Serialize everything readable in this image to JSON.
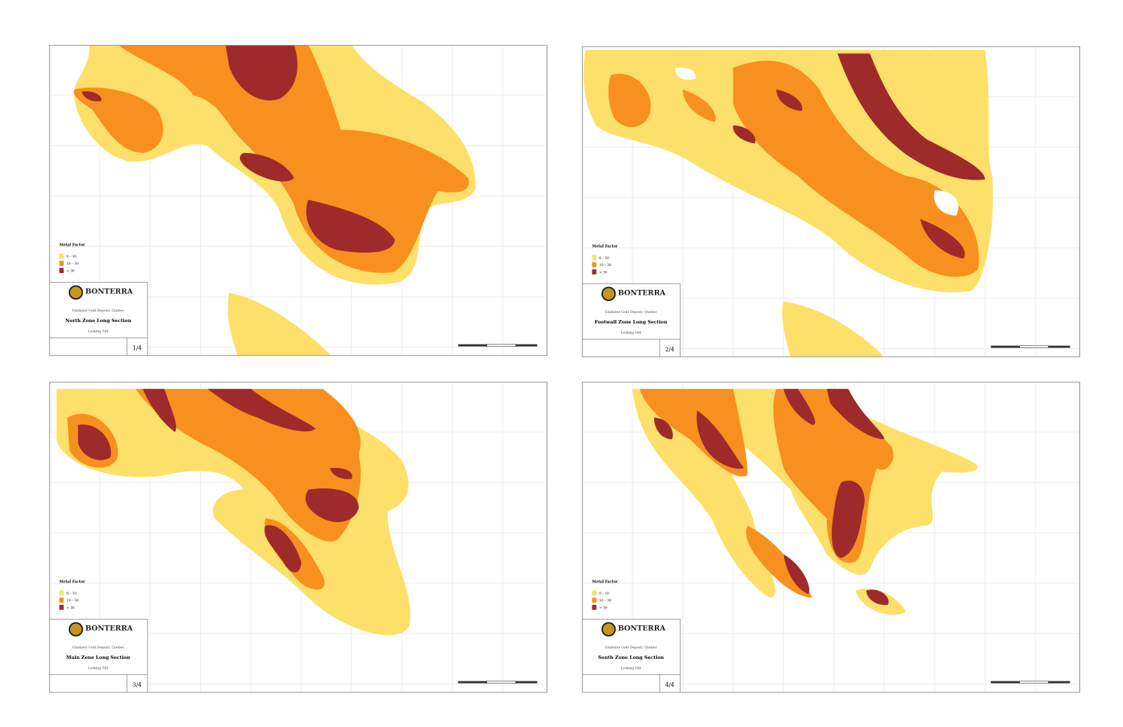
{
  "logo": "BONTERRA",
  "location": "Gladiator Gold Deposit, Quebec",
  "view": "Looking 360",
  "legend": {
    "title": "Metal Factor",
    "items": [
      "0 – 10",
      "10 – 30",
      "> 30"
    ]
  },
  "panels": [
    {
      "title": "North Zone Long Section",
      "page": "1/4"
    },
    {
      "title": "Footwall Zone Long Section",
      "page": "2/4"
    },
    {
      "title": "Main Zone Long Section",
      "page": "3/4"
    },
    {
      "title": "South Zone Long Section",
      "page": "4/4"
    }
  ]
}
